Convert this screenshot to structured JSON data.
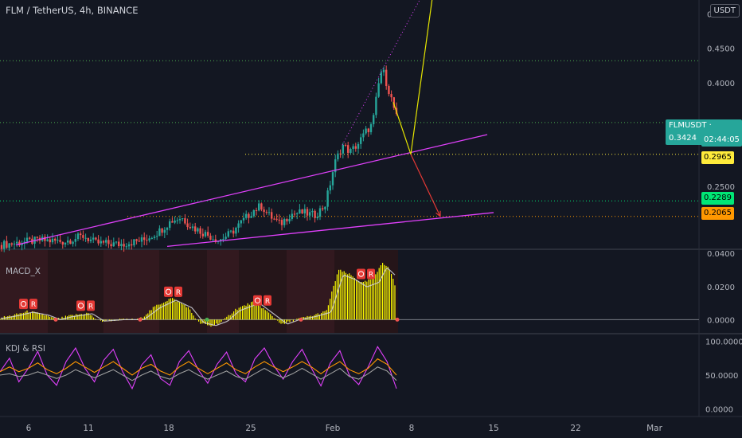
{
  "header": {
    "title": "FLM / TetherUS, 4h, BINANCE",
    "currency": "USDT"
  },
  "price_tags": {
    "symbol": "FLMUSDT",
    "last_price": "0.3424",
    "countdown": "02:44:05",
    "level_1": "0.2965",
    "level_2": "0.2289",
    "level_3": "0.2065"
  },
  "panes": {
    "macd_label": "MACD_X",
    "kdj_label": "KDJ & RSI",
    "signal_badge": "R"
  },
  "colors": {
    "background": "#131722",
    "up": "#26a69a",
    "down": "#ef5350",
    "channel": "#e040fb",
    "projection_up": "#e6e600",
    "projection_down": "#e53935",
    "level_yellow": "#ffeb3b",
    "level_green": "#00e676",
    "level_orange": "#ff9800",
    "macd_hist": "#ffff00"
  },
  "chart_data": [
    {
      "type": "candlestick",
      "title": "FLM / TetherUS, 4h, BINANCE",
      "x_ticks": [
        "6",
        "11",
        "18",
        "25",
        "Feb",
        "8",
        "15",
        "22",
        "Mar"
      ],
      "y_ticks": [
        "0.5000",
        "0.4500",
        "0.4000",
        "0.2500"
      ],
      "ylim": [
        0.16,
        0.52
      ],
      "close_path": [
        {
          "x": 0,
          "y": 0.165
        },
        {
          "x": 20,
          "y": 0.168
        },
        {
          "x": 50,
          "y": 0.172
        },
        {
          "x": 80,
          "y": 0.17
        },
        {
          "x": 105,
          "y": 0.178
        },
        {
          "x": 120,
          "y": 0.168
        },
        {
          "x": 150,
          "y": 0.166
        },
        {
          "x": 180,
          "y": 0.172
        },
        {
          "x": 200,
          "y": 0.185
        },
        {
          "x": 215,
          "y": 0.2
        },
        {
          "x": 228,
          "y": 0.205
        },
        {
          "x": 240,
          "y": 0.192
        },
        {
          "x": 260,
          "y": 0.18
        },
        {
          "x": 275,
          "y": 0.172
        },
        {
          "x": 290,
          "y": 0.182
        },
        {
          "x": 305,
          "y": 0.2
        },
        {
          "x": 318,
          "y": 0.215
        },
        {
          "x": 328,
          "y": 0.222
        },
        {
          "x": 338,
          "y": 0.208
        },
        {
          "x": 352,
          "y": 0.195
        },
        {
          "x": 365,
          "y": 0.21
        },
        {
          "x": 380,
          "y": 0.212
        },
        {
          "x": 395,
          "y": 0.208
        },
        {
          "x": 408,
          "y": 0.222
        },
        {
          "x": 414,
          "y": 0.25
        },
        {
          "x": 420,
          "y": 0.282
        },
        {
          "x": 430,
          "y": 0.31
        },
        {
          "x": 440,
          "y": 0.3
        },
        {
          "x": 450,
          "y": 0.312
        },
        {
          "x": 460,
          "y": 0.33
        },
        {
          "x": 468,
          "y": 0.34
        },
        {
          "x": 475,
          "y": 0.395
        },
        {
          "x": 480,
          "y": 0.422
        },
        {
          "x": 486,
          "y": 0.398
        },
        {
          "x": 492,
          "y": 0.375
        },
        {
          "x": 500,
          "y": 0.342
        }
      ],
      "drawings": {
        "channel_upper": [
          {
            "x": 20,
            "y": 0.165
          },
          {
            "x": 612,
            "y": 0.325
          }
        ],
        "channel_lower": [
          {
            "x": 210,
            "y": 0.163
          },
          {
            "x": 620,
            "y": 0.212
          }
        ],
        "projection_up": {
          "from": {
            "x": 516,
            "y": 0.2965
          },
          "to": {
            "x": 546,
            "y": 0.548
          }
        },
        "projection_down": {
          "from": {
            "x": 516,
            "y": 0.2965
          },
          "to": {
            "x": 553,
            "y": 0.2065
          }
        },
        "trend_dotted": {
          "from": {
            "x": 430,
            "y": 0.31
          },
          "to": {
            "x": 540,
            "y": 0.548
          }
        },
        "levels": [
          0.2965,
          0.2289,
          0.2065,
          0.3424,
          0.432
        ]
      }
    },
    {
      "type": "histogram",
      "title": "MACD_X",
      "y_ticks": [
        "0.0400",
        "0.0200",
        "0.0000"
      ],
      "ylim": [
        -0.008,
        0.042
      ],
      "hist_path": [
        {
          "x": 0,
          "y": 0.001
        },
        {
          "x": 20,
          "y": 0.003
        },
        {
          "x": 35,
          "y": 0.005
        },
        {
          "x": 55,
          "y": 0.003
        },
        {
          "x": 70,
          "y": 0.0
        },
        {
          "x": 85,
          "y": 0.002
        },
        {
          "x": 110,
          "y": 0.004
        },
        {
          "x": 125,
          "y": -0.001
        },
        {
          "x": 150,
          "y": 0.0
        },
        {
          "x": 175,
          "y": 0.0
        },
        {
          "x": 195,
          "y": 0.008
        },
        {
          "x": 215,
          "y": 0.013
        },
        {
          "x": 235,
          "y": 0.008
        },
        {
          "x": 250,
          "y": -0.002
        },
        {
          "x": 265,
          "y": -0.004
        },
        {
          "x": 280,
          "y": -0.001
        },
        {
          "x": 295,
          "y": 0.006
        },
        {
          "x": 320,
          "y": 0.011
        },
        {
          "x": 340,
          "y": 0.003
        },
        {
          "x": 355,
          "y": -0.003
        },
        {
          "x": 370,
          "y": 0.0
        },
        {
          "x": 390,
          "y": 0.002
        },
        {
          "x": 410,
          "y": 0.005
        },
        {
          "x": 425,
          "y": 0.03
        },
        {
          "x": 440,
          "y": 0.027
        },
        {
          "x": 455,
          "y": 0.022
        },
        {
          "x": 470,
          "y": 0.025
        },
        {
          "x": 480,
          "y": 0.035
        },
        {
          "x": 490,
          "y": 0.03
        },
        {
          "x": 498,
          "y": 0.018
        }
      ],
      "signals_x": [
        36,
        108,
        218,
        330,
        460
      ]
    },
    {
      "type": "line",
      "title": "KDJ & RSI",
      "y_ticks": [
        "100.0000",
        "50.0000",
        "0.0000"
      ],
      "ylim": [
        -10,
        110
      ],
      "series": [
        {
          "color": "#e040fb",
          "values": [
            55,
            75,
            40,
            60,
            85,
            50,
            35,
            70,
            90,
            60,
            40,
            72,
            88,
            55,
            30,
            65,
            80,
            45,
            35,
            70,
            86,
            58,
            38,
            66,
            84,
            52,
            40,
            74,
            90,
            64,
            44,
            70,
            88,
            60,
            34,
            68,
            86,
            50,
            36,
            62,
            92,
            70,
            30
          ]
        },
        {
          "color": "#ff9800",
          "values": [
            55,
            62,
            55,
            60,
            68,
            58,
            52,
            60,
            70,
            62,
            54,
            62,
            70,
            60,
            50,
            60,
            66,
            56,
            50,
            62,
            70,
            60,
            52,
            60,
            68,
            58,
            52,
            62,
            70,
            62,
            55,
            62,
            70,
            62,
            52,
            62,
            70,
            58,
            52,
            60,
            74,
            66,
            50
          ]
        },
        {
          "color": "#9e9e9e",
          "values": [
            50,
            52,
            48,
            50,
            55,
            50,
            45,
            50,
            58,
            52,
            46,
            52,
            58,
            50,
            42,
            50,
            56,
            48,
            44,
            52,
            58,
            50,
            44,
            50,
            56,
            48,
            44,
            52,
            60,
            52,
            46,
            52,
            60,
            52,
            44,
            52,
            60,
            48,
            44,
            52,
            62,
            56,
            42
          ]
        }
      ]
    }
  ]
}
